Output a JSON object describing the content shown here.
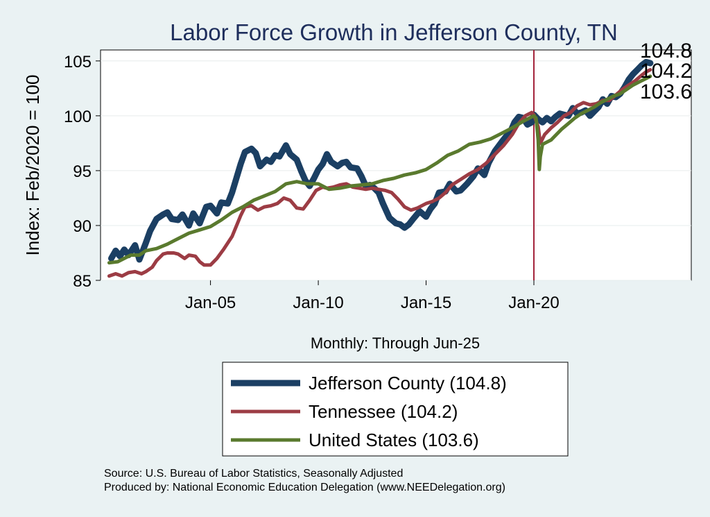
{
  "chart_data": {
    "type": "line",
    "title": "Labor Force Growth in Jefferson  County, TN",
    "ylabel": "Index: Feb/2020 = 100",
    "xlabel": "Monthly: Through Jun-25",
    "ylim": [
      85,
      106
    ],
    "xlim": [
      1999.9,
      2027.3
    ],
    "yticks": [
      85,
      90,
      95,
      100,
      105
    ],
    "xticks": [
      {
        "label": "Jan-05",
        "value": 2005.0
      },
      {
        "label": "Jan-10",
        "value": 2010.0
      },
      {
        "label": "Jan-15",
        "value": 2015.0
      },
      {
        "label": "Jan-20",
        "value": 2020.0
      }
    ],
    "reference_line": {
      "x": 2020.0,
      "color": "#a3233a"
    },
    "grid": true,
    "series": [
      {
        "name": "Jefferson  County",
        "legend": "Jefferson  County (104.8)",
        "end_label": "104.8",
        "color": "#1b3f63",
        "width": 9,
        "x": [
          2000.4,
          2000.6,
          2000.8,
          2001.0,
          2001.2,
          2001.5,
          2001.7,
          2002.0,
          2002.2,
          2002.5,
          2002.8,
          2003.0,
          2003.2,
          2003.5,
          2003.7,
          2004.0,
          2004.2,
          2004.5,
          2004.8,
          2005.0,
          2005.3,
          2005.5,
          2005.8,
          2006.0,
          2006.2,
          2006.4,
          2006.6,
          2006.9,
          2007.1,
          2007.3,
          2007.6,
          2007.8,
          2008.0,
          2008.2,
          2008.5,
          2008.7,
          2009.0,
          2009.2,
          2009.4,
          2009.6,
          2009.8,
          2010.0,
          2010.2,
          2010.4,
          2010.6,
          2010.9,
          2011.1,
          2011.3,
          2011.5,
          2011.8,
          2012.0,
          2012.2,
          2012.4,
          2012.6,
          2012.8,
          2013.0,
          2013.3,
          2013.6,
          2013.8,
          2014.0,
          2014.2,
          2014.4,
          2014.7,
          2015.0,
          2015.2,
          2015.4,
          2015.6,
          2015.9,
          2016.1,
          2016.4,
          2016.6,
          2016.9,
          2017.2,
          2017.4,
          2017.7,
          2017.9,
          2018.2,
          2018.5,
          2018.7,
          2018.9,
          2019.1,
          2019.3,
          2019.5,
          2019.7,
          2019.9,
          2020.0,
          2020.2,
          2020.4,
          2020.6,
          2020.8,
          2021.0,
          2021.2,
          2021.4,
          2021.6,
          2021.8,
          2022.0,
          2022.2,
          2022.4,
          2022.6,
          2022.8,
          2023.0,
          2023.2,
          2023.4,
          2023.6,
          2023.8,
          2024.0,
          2024.2,
          2024.4,
          2024.6,
          2024.8,
          2025.0,
          2025.2,
          2025.4
        ],
        "values": [
          87.0,
          87.7,
          87.2,
          87.8,
          87.3,
          88.2,
          86.9,
          88.4,
          89.5,
          90.6,
          91.0,
          91.2,
          90.6,
          90.5,
          91.0,
          90.0,
          91.1,
          90.2,
          91.7,
          91.8,
          91.1,
          92.1,
          92.0,
          93.0,
          94.3,
          95.6,
          96.7,
          97.0,
          96.6,
          95.4,
          96.0,
          95.8,
          96.4,
          96.3,
          97.3,
          96.5,
          96.0,
          95.0,
          94.1,
          93.6,
          94.3,
          95.1,
          95.6,
          96.5,
          95.8,
          95.4,
          95.7,
          95.8,
          95.3,
          95.2,
          94.5,
          93.6,
          93.7,
          93.4,
          93.0,
          92.0,
          90.7,
          90.2,
          90.1,
          89.8,
          90.1,
          90.6,
          91.3,
          90.8,
          91.5,
          92.0,
          93.0,
          93.1,
          93.8,
          93.1,
          93.2,
          93.8,
          94.5,
          95.2,
          94.6,
          95.7,
          96.8,
          97.6,
          98.1,
          98.5,
          99.4,
          99.9,
          99.8,
          99.2,
          99.4,
          100.1,
          99.7,
          99.4,
          99.8,
          99.5,
          99.9,
          100.2,
          100.1,
          100.0,
          100.7,
          100.2,
          100.3,
          100.5,
          100.0,
          100.4,
          100.8,
          101.5,
          101.1,
          101.8,
          101.7,
          102.0,
          102.6,
          103.3,
          103.8,
          104.2,
          104.6,
          104.9,
          104.8
        ]
      },
      {
        "name": "Tennessee",
        "legend": "Tennessee (104.2)",
        "end_label": "104.2",
        "color": "#9c3c44",
        "width": 5,
        "x": [
          2000.3,
          2000.6,
          2000.9,
          2001.2,
          2001.5,
          2001.8,
          2002.0,
          2002.3,
          2002.5,
          2002.8,
          2003.0,
          2003.3,
          2003.5,
          2003.8,
          2004.0,
          2004.3,
          2004.5,
          2004.7,
          2005.0,
          2005.3,
          2005.6,
          2006.0,
          2006.4,
          2006.6,
          2006.9,
          2007.2,
          2007.5,
          2007.8,
          2008.1,
          2008.4,
          2008.7,
          2009.0,
          2009.3,
          2009.6,
          2009.9,
          2010.2,
          2010.4,
          2010.7,
          2011.0,
          2011.3,
          2011.6,
          2011.9,
          2012.2,
          2012.5,
          2012.8,
          2013.1,
          2013.4,
          2013.7,
          2014.0,
          2014.3,
          2014.6,
          2015.0,
          2015.3,
          2015.6,
          2015.9,
          2016.2,
          2016.6,
          2017.0,
          2017.4,
          2017.8,
          2018.2,
          2018.6,
          2019.0,
          2019.3,
          2019.6,
          2019.9,
          2020.0,
          2020.2,
          2020.3,
          2020.5,
          2020.8,
          2021.1,
          2021.4,
          2021.7,
          2022.0,
          2022.3,
          2022.6,
          2022.9,
          2023.2,
          2023.5,
          2023.8,
          2024.1,
          2024.4,
          2024.7,
          2025.0,
          2025.2,
          2025.4
        ],
        "values": [
          85.4,
          85.6,
          85.4,
          85.7,
          85.8,
          85.6,
          85.8,
          86.2,
          86.8,
          87.4,
          87.5,
          87.5,
          87.4,
          87.0,
          87.3,
          87.2,
          86.7,
          86.4,
          86.4,
          87.0,
          87.8,
          89.0,
          90.9,
          91.7,
          91.8,
          91.4,
          91.7,
          91.8,
          92.0,
          92.5,
          92.3,
          91.6,
          91.5,
          92.3,
          93.2,
          93.5,
          93.4,
          93.5,
          93.7,
          93.8,
          93.5,
          93.4,
          93.3,
          93.4,
          93.3,
          93.2,
          93.0,
          92.4,
          91.7,
          91.4,
          91.6,
          92.0,
          92.2,
          92.5,
          93.0,
          93.7,
          94.2,
          94.7,
          95.1,
          95.7,
          96.5,
          97.3,
          98.3,
          99.3,
          100.0,
          100.3,
          100.1,
          99.0,
          97.5,
          98.3,
          98.9,
          99.4,
          100.0,
          100.3,
          100.9,
          101.2,
          101.0,
          101.1,
          101.4,
          101.4,
          101.9,
          102.4,
          102.8,
          103.2,
          103.7,
          104.0,
          104.2
        ]
      },
      {
        "name": "United States",
        "legend": "United States (103.6)",
        "end_label": "103.6",
        "color": "#5a7a2e",
        "width": 5,
        "x": [
          2000.3,
          2000.7,
          2001.0,
          2001.3,
          2001.7,
          2002.0,
          2002.5,
          2003.0,
          2003.5,
          2004.0,
          2004.5,
          2005.0,
          2005.5,
          2006.0,
          2006.5,
          2007.0,
          2007.5,
          2008.0,
          2008.5,
          2009.0,
          2009.5,
          2010.0,
          2010.5,
          2011.0,
          2011.5,
          2012.0,
          2012.5,
          2013.0,
          2013.5,
          2014.0,
          2014.5,
          2015.0,
          2015.5,
          2016.0,
          2016.5,
          2017.0,
          2017.5,
          2018.0,
          2018.5,
          2019.0,
          2019.5,
          2019.9,
          2020.0,
          2020.1,
          2020.2,
          2020.25,
          2020.3,
          2020.4,
          2020.6,
          2020.8,
          2021.0,
          2021.3,
          2021.6,
          2021.9,
          2022.2,
          2022.5,
          2022.8,
          2023.1,
          2023.4,
          2023.7,
          2024.0,
          2024.3,
          2024.6,
          2024.9,
          2025.2,
          2025.4
        ],
        "values": [
          86.6,
          86.7,
          87.0,
          87.3,
          87.3,
          87.7,
          87.9,
          88.3,
          88.8,
          89.3,
          89.6,
          89.9,
          90.5,
          91.2,
          91.7,
          92.3,
          92.7,
          93.1,
          93.8,
          94.0,
          93.8,
          93.8,
          93.3,
          93.4,
          93.6,
          93.7,
          93.8,
          94.1,
          94.3,
          94.6,
          94.8,
          95.1,
          95.7,
          96.4,
          96.8,
          97.4,
          97.6,
          97.9,
          98.4,
          98.9,
          99.5,
          99.9,
          100.0,
          99.8,
          97.8,
          95.1,
          96.3,
          97.4,
          97.6,
          97.8,
          98.2,
          98.8,
          99.3,
          99.8,
          100.2,
          100.5,
          100.8,
          101.2,
          101.5,
          101.8,
          102.0,
          102.4,
          102.8,
          103.1,
          103.4,
          103.6
        ]
      }
    ]
  },
  "source_note": "Source: U.S. Bureau of Labor Statistics, Seasonally Adjusted",
  "produced_note": "Produced by: National Economic Education Delegation (www.NEEDelegation.org)"
}
